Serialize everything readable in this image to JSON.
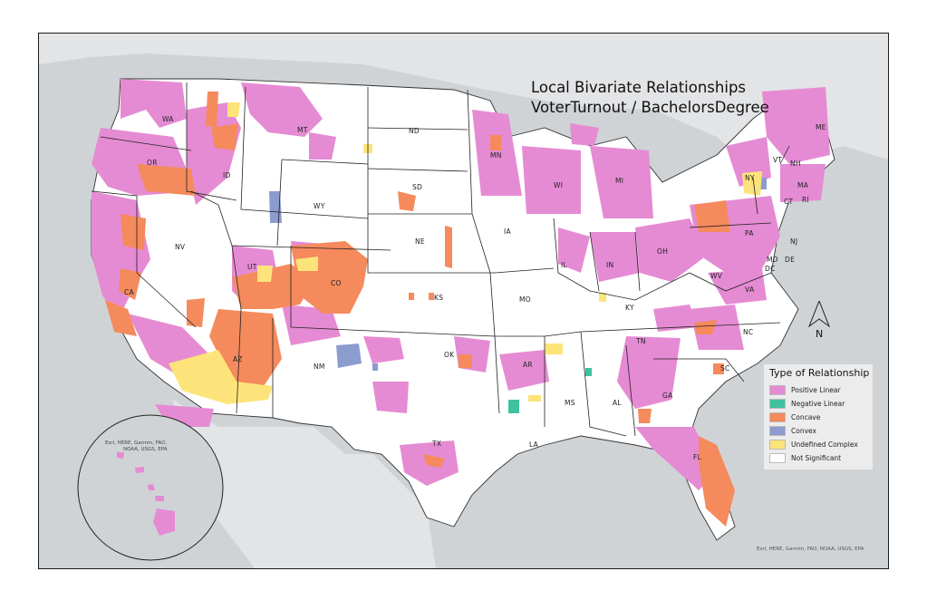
{
  "map": {
    "title_line1": "Local Bivariate Relationships",
    "title_line2": "VoterTurnout / BachelorsDegree",
    "north_label": "N",
    "attribution_main": "Esri, HERE, Garmin, FAO, NOAA, USGS, EPA",
    "attribution_inset_line1": "Esri, HERE, Garmin, FAO,",
    "attribution_inset_line2": "NOAA, USGS, EPA"
  },
  "colors": {
    "positive_linear": "#e58bd3",
    "negative_linear": "#3fc1a0",
    "concave": "#f58a5c",
    "convex": "#8c9ccf",
    "undefined_complex": "#fde47a",
    "not_significant": "#ffffff",
    "ocean": "#cfd3d6"
  },
  "legend": {
    "title": "Type of Relationship",
    "items": [
      {
        "label": "Positive Linear",
        "color": "#e58bd3"
      },
      {
        "label": "Negative Linear",
        "color": "#3fc1a0"
      },
      {
        "label": "Concave",
        "color": "#f58a5c"
      },
      {
        "label": "Convex",
        "color": "#8c9ccf"
      },
      {
        "label": "Undefined Complex",
        "color": "#fde47a"
      },
      {
        "label": "Not Significant",
        "color": "#ffffff"
      }
    ]
  },
  "state_labels": {
    "wa": "WA",
    "or": "OR",
    "ca": "CA",
    "nv": "NV",
    "id": "ID",
    "mt": "MT",
    "wy": "WY",
    "ut": "UT",
    "az": "AZ",
    "co": "CO",
    "nm": "NM",
    "nd": "ND",
    "sd": "SD",
    "ne": "NE",
    "ks": "KS",
    "ok": "OK",
    "tx": "TX",
    "mn": "MN",
    "ia": "IA",
    "mo": "MO",
    "ar": "AR",
    "la": "LA",
    "wi": "WI",
    "il": "IL",
    "ms": "MS",
    "mi": "MI",
    "in": "IN",
    "ky": "KY",
    "tn": "TN",
    "al": "AL",
    "oh": "OH",
    "ga": "GA",
    "fl": "FL",
    "sc": "SC",
    "nc": "NC",
    "va": "VA",
    "wv": "WV",
    "pa": "PA",
    "ny": "NY",
    "md": "MD",
    "de": "DE",
    "dc": "DC",
    "nj": "NJ",
    "ct": "CT",
    "ri": "RI",
    "ma": "MA",
    "vt": "VT",
    "nh": "NH",
    "me": "ME"
  }
}
